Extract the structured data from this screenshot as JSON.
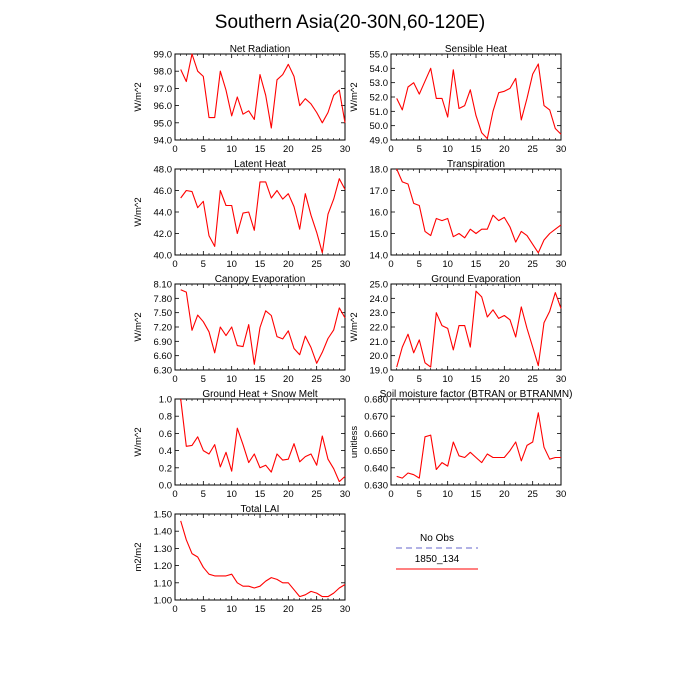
{
  "figure": {
    "title": "Southern Asia(20-30N,60-120E)"
  },
  "legend": {
    "items": [
      {
        "label": "No Obs",
        "color": "#9999dd",
        "dash": true
      },
      {
        "label": "1850_134",
        "color": "#ff0000",
        "dash": false
      }
    ]
  },
  "chart_data": [
    {
      "type": "line",
      "title": "Net Radiation",
      "ylabel": "W/m^2",
      "xlim": [
        0,
        30
      ],
      "ylim": [
        94.0,
        99.0
      ],
      "xticks": [
        0,
        5,
        10,
        15,
        20,
        25,
        30
      ],
      "yticks": [
        "94.0",
        "95.0",
        "96.0",
        "97.0",
        "98.0",
        "99.0"
      ],
      "series": [
        {
          "color": "#ff0000",
          "x": [
            1,
            2,
            3,
            4,
            5,
            6,
            7,
            8,
            9,
            10,
            11,
            12,
            13,
            14,
            15,
            16,
            17,
            18,
            19,
            20,
            21,
            22,
            23,
            24,
            25,
            26,
            27,
            28,
            29,
            30
          ],
          "values": [
            98.1,
            97.4,
            99.0,
            98.0,
            97.7,
            95.3,
            95.3,
            98.0,
            96.9,
            95.4,
            96.5,
            95.5,
            95.7,
            95.2,
            97.8,
            96.6,
            94.7,
            97.5,
            97.8,
            98.4,
            97.7,
            96.0,
            96.4,
            96.1,
            95.6,
            95.0,
            95.6,
            96.6,
            96.9,
            95.0
          ]
        }
      ]
    },
    {
      "type": "line",
      "title": "Sensible Heat",
      "ylabel": "W/m^2",
      "xlim": [
        0,
        30
      ],
      "ylim": [
        49.0,
        55.0
      ],
      "xticks": [
        0,
        5,
        10,
        15,
        20,
        25,
        30
      ],
      "yticks": [
        "49.0",
        "50.0",
        "51.0",
        "52.0",
        "53.0",
        "54.0",
        "55.0"
      ],
      "series": [
        {
          "color": "#ff0000",
          "x": [
            1,
            2,
            3,
            4,
            5,
            6,
            7,
            8,
            9,
            10,
            11,
            12,
            13,
            14,
            15,
            16,
            17,
            18,
            19,
            20,
            21,
            22,
            23,
            24,
            25,
            26,
            27,
            28,
            29,
            30
          ],
          "values": [
            51.9,
            51.1,
            52.7,
            53.0,
            52.2,
            53.1,
            54.0,
            51.9,
            51.9,
            50.6,
            53.9,
            51.2,
            51.4,
            52.5,
            50.7,
            49.5,
            49.1,
            51.0,
            52.3,
            52.4,
            52.6,
            53.3,
            50.4,
            51.9,
            53.6,
            54.3,
            51.4,
            51.1,
            49.8,
            49.4
          ]
        }
      ]
    },
    {
      "type": "line",
      "title": "Latent Heat",
      "ylabel": "W/m^2",
      "xlim": [
        0,
        30
      ],
      "ylim": [
        40.0,
        48.0
      ],
      "xticks": [
        0,
        5,
        10,
        15,
        20,
        25,
        30
      ],
      "yticks": [
        "40.0",
        "42.0",
        "44.0",
        "46.0",
        "48.0"
      ],
      "series": [
        {
          "color": "#ff0000",
          "x": [
            1,
            2,
            3,
            4,
            5,
            6,
            7,
            8,
            9,
            10,
            11,
            12,
            13,
            14,
            15,
            16,
            17,
            18,
            19,
            20,
            21,
            22,
            23,
            24,
            25,
            26,
            27,
            28,
            29,
            30
          ],
          "values": [
            45.3,
            46.0,
            45.9,
            44.4,
            45.0,
            41.8,
            40.8,
            46.0,
            44.6,
            44.6,
            42.0,
            43.9,
            44.0,
            42.3,
            46.8,
            46.8,
            45.3,
            46.0,
            45.2,
            45.7,
            44.5,
            42.4,
            45.7,
            43.7,
            42.1,
            40.2,
            43.8,
            45.2,
            47.1,
            46.1
          ]
        }
      ]
    },
    {
      "type": "line",
      "title": "Transpiration",
      "ylabel": "",
      "xlim": [
        0,
        30
      ],
      "ylim": [
        14.0,
        18.0
      ],
      "xticks": [
        0,
        5,
        10,
        15,
        20,
        25,
        30
      ],
      "yticks": [
        "14.0",
        "15.0",
        "16.0",
        "17.0",
        "18.0"
      ],
      "series": [
        {
          "color": "#ff0000",
          "x": [
            1,
            2,
            3,
            4,
            5,
            6,
            7,
            8,
            9,
            10,
            11,
            12,
            13,
            14,
            15,
            16,
            17,
            18,
            19,
            20,
            21,
            22,
            23,
            24,
            25,
            26,
            27,
            28,
            29,
            30
          ],
          "values": [
            18.1,
            17.4,
            17.3,
            16.4,
            16.3,
            15.1,
            14.9,
            15.7,
            15.6,
            15.7,
            14.85,
            15.0,
            14.8,
            15.2,
            15.0,
            15.2,
            15.2,
            15.85,
            15.6,
            15.75,
            15.3,
            14.6,
            15.1,
            14.9,
            14.5,
            14.1,
            14.7,
            15.0,
            15.2,
            15.4
          ]
        }
      ]
    },
    {
      "type": "line",
      "title": "Canopy Evaporation",
      "ylabel": "W/m^2",
      "xlim": [
        0,
        30
      ],
      "ylim": [
        6.3,
        8.1
      ],
      "xticks": [
        0,
        5,
        10,
        15,
        20,
        25,
        30
      ],
      "yticks": [
        "6.30",
        "6.60",
        "6.90",
        "7.20",
        "7.50",
        "7.80",
        "8.10"
      ],
      "series": [
        {
          "color": "#ff0000",
          "x": [
            1,
            2,
            3,
            4,
            5,
            6,
            7,
            8,
            9,
            10,
            11,
            12,
            13,
            14,
            15,
            16,
            17,
            18,
            19,
            20,
            21,
            22,
            23,
            24,
            25,
            26,
            27,
            28,
            29,
            30
          ],
          "values": [
            7.98,
            7.93,
            7.13,
            7.45,
            7.31,
            7.1,
            6.66,
            7.2,
            7.02,
            7.2,
            6.81,
            6.79,
            7.25,
            6.42,
            7.19,
            7.54,
            7.44,
            7.0,
            6.95,
            7.12,
            6.75,
            6.62,
            7.01,
            6.77,
            6.44,
            6.67,
            6.96,
            7.14,
            7.6,
            7.39
          ]
        }
      ]
    },
    {
      "type": "line",
      "title": "Ground Evaporation",
      "ylabel": "W/m^2",
      "xlim": [
        0,
        30
      ],
      "ylim": [
        19.0,
        25.0
      ],
      "xticks": [
        0,
        5,
        10,
        15,
        20,
        25,
        30
      ],
      "yticks": [
        "19.0",
        "20.0",
        "21.0",
        "22.0",
        "23.0",
        "24.0",
        "25.0"
      ],
      "series": [
        {
          "color": "#ff0000",
          "x": [
            1,
            2,
            3,
            4,
            5,
            6,
            7,
            8,
            9,
            10,
            11,
            12,
            13,
            14,
            15,
            16,
            17,
            18,
            19,
            20,
            21,
            22,
            23,
            24,
            25,
            26,
            27,
            28,
            29,
            30
          ],
          "values": [
            19.2,
            20.6,
            21.5,
            20.2,
            21.1,
            19.5,
            19.2,
            23.0,
            22.1,
            21.9,
            20.4,
            22.1,
            22.1,
            20.6,
            24.5,
            24.1,
            22.7,
            23.2,
            22.6,
            22.8,
            22.5,
            21.3,
            23.4,
            21.9,
            20.6,
            19.3,
            22.3,
            23.1,
            24.4,
            23.3
          ]
        }
      ]
    },
    {
      "type": "line",
      "title": "Ground Heat + Snow Melt",
      "ylabel": "W/m^2",
      "xlim": [
        0,
        30
      ],
      "ylim": [
        0.0,
        1.0
      ],
      "xticks": [
        0,
        5,
        10,
        15,
        20,
        25,
        30
      ],
      "yticks": [
        "0.0",
        "0.2",
        "0.4",
        "0.6",
        "0.8",
        "1.0"
      ],
      "series": [
        {
          "color": "#ff0000",
          "x": [
            1,
            2,
            3,
            4,
            5,
            6,
            7,
            8,
            9,
            10,
            11,
            12,
            13,
            14,
            15,
            16,
            17,
            18,
            19,
            20,
            21,
            22,
            23,
            24,
            25,
            26,
            27,
            28,
            29,
            30
          ],
          "values": [
            1.0,
            0.45,
            0.46,
            0.56,
            0.4,
            0.36,
            0.47,
            0.21,
            0.38,
            0.16,
            0.66,
            0.47,
            0.26,
            0.36,
            0.2,
            0.23,
            0.15,
            0.36,
            0.29,
            0.3,
            0.48,
            0.27,
            0.33,
            0.36,
            0.23,
            0.57,
            0.3,
            0.19,
            0.04,
            0.1
          ]
        }
      ]
    },
    {
      "type": "line",
      "title": "Soil moisture factor (BTRAN or BTRANMN)",
      "ylabel": "unitless",
      "xlim": [
        0,
        30
      ],
      "ylim": [
        0.63,
        0.68
      ],
      "xticks": [
        0,
        5,
        10,
        15,
        20,
        25,
        30
      ],
      "yticks": [
        "0.630",
        "0.640",
        "0.650",
        "0.660",
        "0.670",
        "0.680"
      ],
      "series": [
        {
          "color": "#ff0000",
          "x": [
            1,
            2,
            3,
            4,
            5,
            6,
            7,
            8,
            9,
            10,
            11,
            12,
            13,
            14,
            15,
            16,
            17,
            18,
            19,
            20,
            21,
            22,
            23,
            24,
            25,
            26,
            27,
            28,
            29,
            30
          ],
          "values": [
            0.635,
            0.634,
            0.637,
            0.636,
            0.634,
            0.658,
            0.659,
            0.639,
            0.643,
            0.641,
            0.655,
            0.647,
            0.646,
            0.649,
            0.646,
            0.643,
            0.648,
            0.646,
            0.646,
            0.646,
            0.65,
            0.655,
            0.644,
            0.653,
            0.655,
            0.672,
            0.652,
            0.645,
            0.646,
            0.646
          ]
        }
      ]
    },
    {
      "type": "line",
      "title": "Total LAI",
      "ylabel": "m2/m2",
      "xlim": [
        0,
        30
      ],
      "ylim": [
        1.0,
        1.5
      ],
      "xticks": [
        0,
        5,
        10,
        15,
        20,
        25,
        30
      ],
      "yticks": [
        "1.00",
        "1.10",
        "1.20",
        "1.30",
        "1.40",
        "1.50"
      ],
      "series": [
        {
          "color": "#ff0000",
          "x": [
            1,
            2,
            3,
            4,
            5,
            6,
            7,
            8,
            9,
            10,
            11,
            12,
            13,
            14,
            15,
            16,
            17,
            18,
            19,
            20,
            21,
            22,
            23,
            24,
            25,
            26,
            27,
            28,
            29,
            30
          ],
          "values": [
            1.46,
            1.35,
            1.27,
            1.25,
            1.19,
            1.15,
            1.14,
            1.14,
            1.14,
            1.15,
            1.1,
            1.08,
            1.08,
            1.07,
            1.08,
            1.11,
            1.13,
            1.12,
            1.1,
            1.1,
            1.06,
            1.02,
            1.03,
            1.05,
            1.04,
            1.02,
            1.02,
            1.04,
            1.07,
            1.09
          ]
        }
      ]
    }
  ]
}
